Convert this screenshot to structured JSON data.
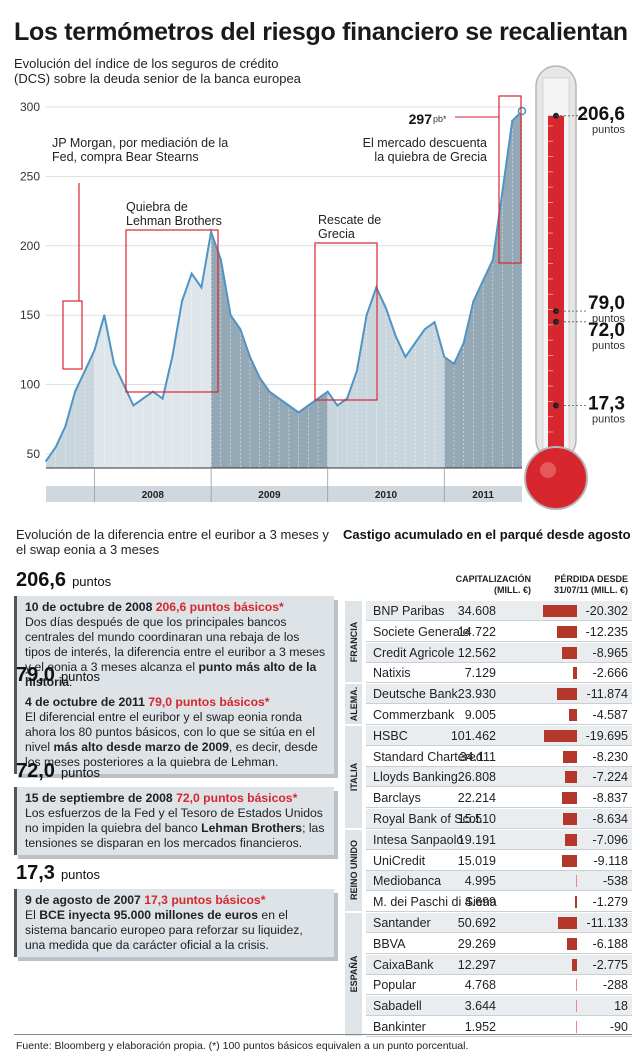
{
  "title": "Los termómetros del riesgo financiero se recalientan",
  "subtitle": "Evolución del índice de los seguros de crédito (DCS) sobre la deuda senior de la banca europea",
  "chart_data": [
    {
      "type": "area",
      "title": "",
      "ylim": [
        40,
        310
      ],
      "yticks": [
        50,
        100,
        150,
        200,
        250,
        300
      ],
      "xticks": [
        "2008",
        "2009",
        "2010",
        "2011"
      ],
      "annotations": [
        "JP Morgan, por mediación de la Fed, compra Bear Stearns",
        "Quiebra de Lehman Brothers",
        "Rescate de Grecia",
        "El mercado descuenta la quiebra de Grecia"
      ],
      "peak_label": "297",
      "peak_unit": "pb*",
      "x": [
        "2007-08",
        "2007-09",
        "2007-10",
        "2007-11",
        "2007-12",
        "2008-01",
        "2008-02",
        "2008-03",
        "2008-04",
        "2008-05",
        "2008-06",
        "2008-07",
        "2008-08",
        "2008-09",
        "2008-10",
        "2008-11",
        "2008-12",
        "2009-01",
        "2009-02",
        "2009-03",
        "2009-04",
        "2009-05",
        "2009-06",
        "2009-07",
        "2009-08",
        "2009-09",
        "2009-10",
        "2009-11",
        "2009-12",
        "2010-01",
        "2010-02",
        "2010-03",
        "2010-04",
        "2010-05",
        "2010-06",
        "2010-07",
        "2010-08",
        "2010-09",
        "2010-10",
        "2010-11",
        "2010-12",
        "2011-01",
        "2011-02",
        "2011-03",
        "2011-04",
        "2011-05",
        "2011-06",
        "2011-07",
        "2011-08",
        "2011-09"
      ],
      "values": [
        45,
        55,
        70,
        95,
        110,
        125,
        150,
        115,
        100,
        85,
        90,
        95,
        90,
        120,
        160,
        180,
        170,
        210,
        190,
        150,
        140,
        120,
        105,
        95,
        90,
        85,
        80,
        85,
        90,
        95,
        85,
        90,
        110,
        150,
        170,
        155,
        135,
        120,
        130,
        140,
        145,
        120,
        115,
        130,
        160,
        175,
        190,
        240,
        290,
        297
      ]
    },
    {
      "type": "bar",
      "title": "",
      "scale_labels": [
        "206,6",
        "79,0",
        "72,0",
        "17,3"
      ],
      "scale_unit": "puntos",
      "scale_values": [
        206.6,
        79.0,
        72.0,
        17.3
      ],
      "ylim": [
        0,
        230
      ]
    },
    {
      "type": "table",
      "title": "Castigo acumulado en el parqué desde agosto",
      "columns": [
        "CAPITALIZACIÓN (MILL. €)",
        "PÉRDIDA DESDE 31/07/11 (MILL. €)"
      ],
      "groups": [
        {
          "country": "FRANCIA",
          "rows": [
            {
              "name": "BNP Paribas",
              "cap": "34.608",
              "loss": "-20.302",
              "v": 20302
            },
            {
              "name": "Societe Generale",
              "cap": "14.722",
              "loss": "-12.235",
              "v": 12235
            },
            {
              "name": "Credit Agricole",
              "cap": "12.562",
              "loss": "-8.965",
              "v": 8965
            },
            {
              "name": "Natixis",
              "cap": "7.129",
              "loss": "-2.666",
              "v": 2666
            }
          ]
        },
        {
          "country": "ALEMA.",
          "rows": [
            {
              "name": "Deutsche Bank",
              "cap": "23.930",
              "loss": "-11.874",
              "v": 11874
            },
            {
              "name": "Commerzbank",
              "cap": "9.005",
              "loss": "-4.587",
              "v": 4587
            }
          ]
        },
        {
          "country": "ITALIA",
          "rows": [
            {
              "name": "HSBC",
              "cap": "101.462",
              "loss": "-19.695",
              "v": 19695
            },
            {
              "name": "Standard Chartered",
              "cap": "34.111",
              "loss": "-8.230",
              "v": 8230
            },
            {
              "name": "Lloyds Banking",
              "cap": "26.808",
              "loss": "-7.224",
              "v": 7224
            },
            {
              "name": "Barclays",
              "cap": "22.214",
              "loss": "-8.837",
              "v": 8837
            },
            {
              "name": "Royal Bank of Scot.",
              "cap": "15.510",
              "loss": "-8.634",
              "v": 8634
            }
          ]
        },
        {
          "country": "REINO UNIDO",
          "rows": [
            {
              "name": "Intesa Sanpaolo",
              "cap": "19.191",
              "loss": "-7.096",
              "v": 7096
            },
            {
              "name": "UniCredit",
              "cap": "15.019",
              "loss": "-9.118",
              "v": 9118
            },
            {
              "name": "Mediobanca",
              "cap": "4.995",
              "loss": "-538",
              "v": 538
            },
            {
              "name": "M. dei Paschi di Siena",
              "cap": "4.699",
              "loss": "-1.279",
              "v": 1279
            }
          ]
        },
        {
          "country": "ESPAÑA",
          "rows": [
            {
              "name": "Santander",
              "cap": "50.692",
              "loss": "-11.133",
              "v": 11133
            },
            {
              "name": "BBVA",
              "cap": "29.269",
              "loss": "-6.188",
              "v": 6188
            },
            {
              "name": "CaixaBank",
              "cap": "12.297",
              "loss": "-2.775",
              "v": 2775
            },
            {
              "name": "Popular",
              "cap": "4.768",
              "loss": "-288",
              "v": 288
            },
            {
              "name": "Sabadell",
              "cap": "3.644",
              "loss": "18",
              "v": 18
            },
            {
              "name": "Bankinter",
              "cap": "1.952",
              "loss": "-90",
              "v": 90
            }
          ]
        }
      ]
    }
  ],
  "euribor": {
    "title": "Evolución de la diferencia entre el euribor a 3 meses y el swap eonia a 3 meses",
    "unit": "puntos",
    "items": [
      {
        "value": "206,6",
        "date": "10 de octubre de 2008",
        "bp": "206,6 puntos básicos*",
        "t1": "Dos días después de que los principales bancos centrales del mundo coordinaran una rebaja de los tipos de interés, la diferencia entre el euribor a 3 meses y el eonia a 3 meses alcanza el ",
        "b1": "punto más alto de la historia",
        "t2": "."
      },
      {
        "value": "79,0",
        "date": "4 de octubre de 2011",
        "bp": "79,0 puntos básicos*",
        "t1": "El diferencial entre el euribor y el swap eonia ronda ahora los 80 puntos básicos, con lo que se sitúa en el nivel ",
        "b1": "más alto desde marzo de 2009",
        "t2": ", es decir, desde los meses posteriores a la quiebra de Lehman."
      },
      {
        "value": "72,0",
        "date": "15 de septiembre de 2008",
        "bp": "72,0 puntos básicos*",
        "t1": "Los esfuerzos de la Fed y el Tesoro de Estados Unidos no impiden la quiebra del banco ",
        "b1": "Lehman Brothers",
        "t2": "; las tensiones se disparan en los mercados financieros."
      },
      {
        "value": "17,3",
        "date": "9 de agosto de 2007",
        "bp": "17,3 puntos básicos*",
        "t0": "El ",
        "b0": "BCE inyecta 95.000 millones de euros",
        "t1": " en el sistema bancario europeo para reforzar su liquidez, una medida que da carácter oficial a la crisis.",
        "b1": "",
        "t2": ""
      }
    ]
  },
  "footer": "Fuente: Bloomberg y elaboración propia. (*) 100 puntos básicos equivalen a un punto porcentual.",
  "colors": {
    "line": "#4f94c4",
    "area_light": "#c9d6de",
    "area_dark": "#95a8b5",
    "red": "#d8262e",
    "bar": "#b3382b"
  }
}
